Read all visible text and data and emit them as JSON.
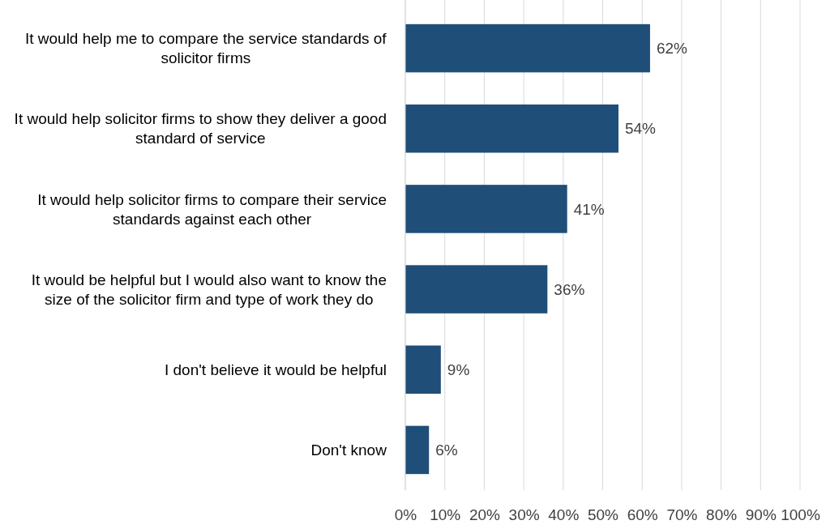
{
  "chart_data": {
    "type": "bar",
    "orientation": "horizontal",
    "categories": [
      "It would help me to compare the service standards of solicitor firms",
      "It would help solicitor firms to show they deliver a good standard of service",
      "It would help solicitor firms to compare their service standards against each other",
      "It would be helpful but I would also want to know the size of the solicitor firm and type of work they do",
      "I don't believe it would be helpful",
      "Don't know"
    ],
    "values": [
      62,
      54,
      41,
      36,
      9,
      6
    ],
    "value_labels": [
      "62%",
      "54%",
      "41%",
      "36%",
      "9%",
      "6%"
    ],
    "color": "#1f4e79",
    "xlim": [
      0,
      100
    ],
    "xticks": [
      {
        "value": 0,
        "label": "0%"
      },
      {
        "value": 10,
        "label": "10%"
      },
      {
        "value": 20,
        "label": "20%"
      },
      {
        "value": 30,
        "label": "30%"
      },
      {
        "value": 40,
        "label": "40%"
      },
      {
        "value": 50,
        "label": "50%"
      },
      {
        "value": 60,
        "label": "60%"
      },
      {
        "value": 70,
        "label": "70%"
      },
      {
        "value": 80,
        "label": "80%"
      },
      {
        "value": 90,
        "label": "90%"
      },
      {
        "value": 100,
        "label": "100%"
      }
    ],
    "grid": "x"
  }
}
